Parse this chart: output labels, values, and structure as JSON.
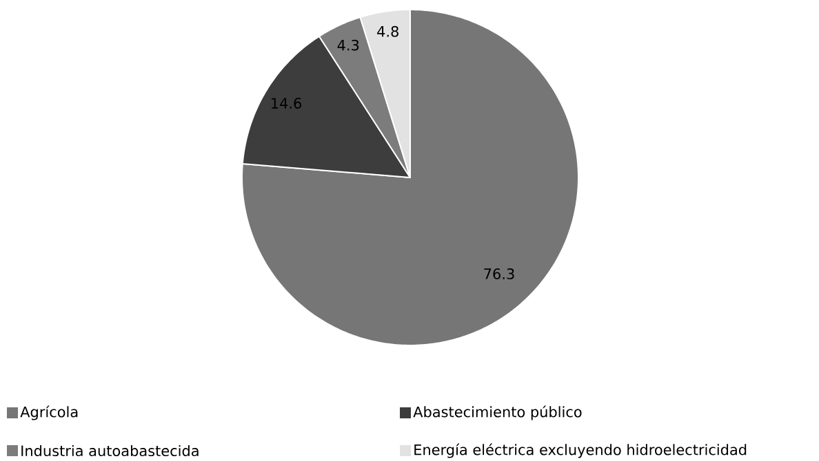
{
  "chart_data": {
    "type": "pie",
    "categories": [
      "Agrícola",
      "Abastecimiento público",
      "Industria autoabastecida",
      "Energía eléctrica excluyendo hidroelectricidad"
    ],
    "values": [
      76.3,
      14.6,
      4.3,
      4.8
    ],
    "colors": [
      "#767676",
      "#3d3d3d",
      "#7c7c7c",
      "#e2e2e2"
    ],
    "data_labels": true,
    "legend": "bottom"
  }
}
